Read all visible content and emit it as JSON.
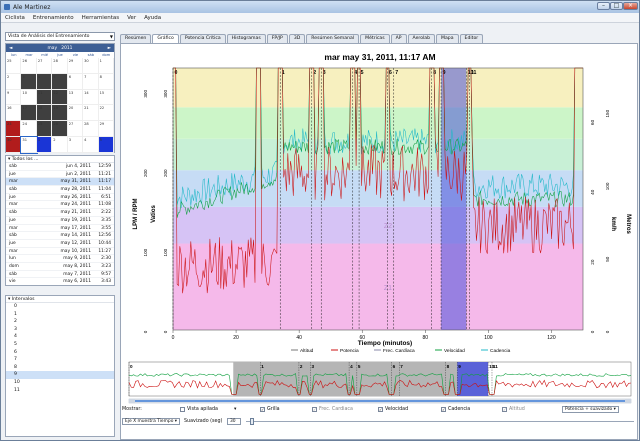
{
  "window": {
    "title": "Ale Martinez",
    "min": "–",
    "max": "□",
    "close": "×"
  },
  "menu": [
    "Ciclista",
    "Entrenamiento",
    "Herramientas",
    "Ver",
    "Ayuda"
  ],
  "left": {
    "view_combo": "Vista de Análisis del Entrenamiento",
    "calendar": {
      "prev": "◄",
      "month": "may",
      "year": "2011",
      "next": "►",
      "dow": [
        "lun",
        "mar",
        "mié",
        "jue",
        "vie",
        "sáb",
        "dom"
      ],
      "days": [
        "25",
        "26",
        "27",
        "28",
        "29",
        "30",
        "1",
        "2",
        "3",
        "4",
        "5",
        "6",
        "7",
        "8",
        "9",
        "10",
        "11",
        "12",
        "13",
        "14",
        "15",
        "16",
        "17",
        "18",
        "19",
        "20",
        "21",
        "22",
        "23",
        "24",
        "25",
        "26",
        "27",
        "28",
        "29",
        "30",
        "31",
        "1",
        "2",
        "3",
        "4",
        "5"
      ]
    },
    "rides_header": "Todos los ...",
    "rides": [
      [
        "sáb",
        "jun 4, 2011",
        "12:59"
      ],
      [
        "jue",
        "jun 2, 2011",
        "11:21"
      ],
      [
        "mar",
        "may 31, 2011",
        "11:17"
      ],
      [
        "sáb",
        "may 28, 2011",
        "11:04"
      ],
      [
        "jue",
        "may 26, 2011",
        "6:51"
      ],
      [
        "mar",
        "may 24, 2011",
        "11:08"
      ],
      [
        "sáb",
        "may 21, 2011",
        "2:22"
      ],
      [
        "jue",
        "may 19, 2011",
        "3:35"
      ],
      [
        "mar",
        "may 17, 2011",
        "3:55"
      ],
      [
        "sáb",
        "may 14, 2011",
        "12:56"
      ],
      [
        "jue",
        "may 12, 2011",
        "10:44"
      ],
      [
        "mar",
        "may 10, 2011",
        "11:27"
      ],
      [
        "lun",
        "may 9, 2011",
        "2:30"
      ],
      [
        "dom",
        "may 8, 2011",
        "3:23"
      ],
      [
        "sáb",
        "may 7, 2011",
        "9:57"
      ],
      [
        "vie",
        "may 6, 2011",
        "3:43"
      ]
    ],
    "intervals_header": "Intervalos",
    "intervals": [
      "0",
      "1",
      "2",
      "3",
      "4",
      "5",
      "6",
      "7",
      "8",
      "9",
      "10",
      "11"
    ]
  },
  "tabs": [
    "Resúmen",
    "Gráfico",
    "Potencia Crítica",
    "Histogramas",
    "FP/JP",
    "3D",
    "Resúmen Semanal",
    "Métricas",
    "AP",
    "Aerolab",
    "Mapa",
    "Editor"
  ],
  "active_tab": "Gráfico",
  "chart_data": {
    "type": "line",
    "title": "mar may 31, 2011, 11:17 AM",
    "xlabel": "Tiempo (minutos)",
    "ylabel_left_outer": "LPM / RPM",
    "ylabel_left_inner": "Vatios",
    "ylabel_right_inner": "km/h",
    "ylabel_right_outer": "Metros",
    "xlim": [
      0,
      130
    ],
    "xticks": [
      0,
      20,
      40,
      60,
      80,
      100,
      120
    ],
    "yticks_hr": [
      0,
      100,
      200,
      300
    ],
    "yticks_watts": [
      0,
      100,
      200,
      300
    ],
    "yticks_speed": [
      0,
      20,
      40,
      60
    ],
    "yticks_alt": [
      0,
      50,
      100,
      150
    ],
    "zones": [
      {
        "label": "Z1",
        "color": "#f5b9ea"
      },
      {
        "label": "Z2",
        "color": "#d6c3f5"
      },
      {
        "label": "",
        "color": "#c6dcf5"
      },
      {
        "label": "",
        "color": "#c8f0d6"
      },
      {
        "label": "",
        "color": "#ccf5c8"
      },
      {
        "label": "",
        "color": "#f7f0bf"
      }
    ],
    "interval_markers": [
      {
        "label": "0",
        "x": 0
      },
      {
        "label": "1",
        "x": 34
      },
      {
        "label": "2",
        "x": 44
      },
      {
        "label": "3",
        "x": 47
      },
      {
        "label": "4",
        "x": 57
      },
      {
        "label": "5",
        "x": 59
      },
      {
        "label": "6",
        "x": 68
      },
      {
        "label": "7",
        "x": 70
      },
      {
        "label": "8",
        "x": 82
      },
      {
        "label": "9",
        "x": 85
      },
      {
        "label": "10",
        "x": 93
      },
      {
        "label": "11",
        "x": 94
      }
    ],
    "highlight": {
      "from": 85,
      "to": 93
    },
    "series": [
      {
        "name": "Altitud",
        "color": "#777777"
      },
      {
        "name": "Potencia",
        "color": "#cc1010"
      },
      {
        "name": "Frec. Cardíaca",
        "color": "#8888aa"
      },
      {
        "name": "Velocidad",
        "color": "#10a040"
      },
      {
        "name": "Cadencia",
        "color": "#22b8c8"
      }
    ]
  },
  "controls": {
    "mostrar": "Mostrar:",
    "vista_apilada": "Vista apilada",
    "grilla": "Grilla",
    "frec_cardiaca": "Frec. Cardiaca",
    "velocidad": "Velocidad",
    "cadencia": "Cadencia",
    "altitud": "Altitud",
    "potencia_dd": "Potencia + suavizado",
    "eje_x": "Eje X muestra Tiempo",
    "suavizado_label": "Suavizado (seg)",
    "suavizado_value": "30"
  }
}
